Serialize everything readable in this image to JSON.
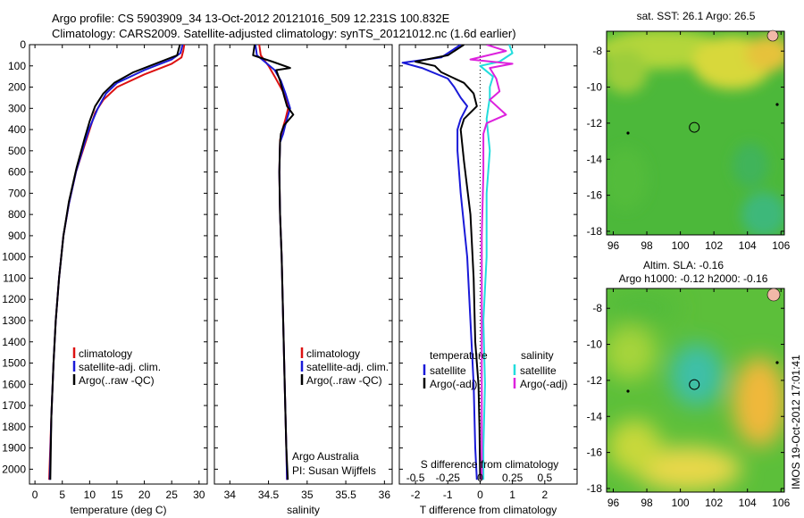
{
  "header": {
    "title_line1": "Argo profile: CS 5903909_34 13-Oct-2012 20121016_509 12.231S 100.832E",
    "title_line2": "Climatology: CARS2009. Satellite-adjusted climatology: synTS_20121012.nc (1.6d earlier)"
  },
  "colors": {
    "climatology": "#dd1111",
    "satellite": "#1a1ad8",
    "argo": "#000000",
    "sal_satellite": "#22dddd",
    "sal_argo": "#dd22dd"
  },
  "depth_axis": {
    "ticks": [
      0,
      100,
      200,
      300,
      400,
      500,
      600,
      700,
      800,
      900,
      1000,
      1100,
      1200,
      1300,
      1400,
      1500,
      1600,
      1700,
      1800,
      1900,
      2000
    ],
    "range": [
      0,
      2070
    ]
  },
  "chart_data": [
    {
      "type": "line",
      "name": "temperature-profile",
      "xlabel": "temperature (deg C)",
      "xlim": [
        -1,
        31.5
      ],
      "xticks": [
        0,
        5,
        10,
        15,
        20,
        25,
        30
      ],
      "legend": [
        "climatology",
        "satellite-adj. clim.",
        "Argo(..raw -QC)"
      ],
      "series": [
        {
          "name": "climatology",
          "color_key": "climatology",
          "points": [
            [
              27.3,
              0
            ],
            [
              27.1,
              30
            ],
            [
              26.8,
              60
            ],
            [
              25.0,
              90
            ],
            [
              20.0,
              140
            ],
            [
              15.0,
              200
            ],
            [
              12.5,
              260
            ],
            [
              11.0,
              320
            ],
            [
              10.0,
              400
            ],
            [
              9.0,
              480
            ],
            [
              7.5,
              600
            ],
            [
              6.2,
              750
            ],
            [
              5.2,
              900
            ],
            [
              4.4,
              1100
            ],
            [
              3.8,
              1300
            ],
            [
              3.4,
              1500
            ],
            [
              3.0,
              1750
            ],
            [
              2.6,
              2050
            ]
          ]
        },
        {
          "name": "satellite-adj. clim.",
          "color_key": "satellite",
          "points": [
            [
              27.0,
              0
            ],
            [
              26.6,
              40
            ],
            [
              25.0,
              70
            ],
            [
              20.0,
              120
            ],
            [
              15.0,
              180
            ],
            [
              13.0,
              230
            ],
            [
              11.5,
              300
            ],
            [
              10.0,
              390
            ],
            [
              9.0,
              470
            ],
            [
              7.5,
              600
            ],
            [
              6.2,
              750
            ],
            [
              5.2,
              900
            ],
            [
              4.4,
              1100
            ],
            [
              3.8,
              1300
            ],
            [
              3.4,
              1500
            ],
            [
              3.0,
              1750
            ],
            [
              2.7,
              2050
            ]
          ]
        },
        {
          "name": "Argo(..raw -QC)",
          "color_key": "argo",
          "points": [
            [
              26.5,
              0
            ],
            [
              26.0,
              50
            ],
            [
              22.0,
              90
            ],
            [
              18.0,
              130
            ],
            [
              14.5,
              180
            ],
            [
              12.5,
              230
            ],
            [
              11.0,
              290
            ],
            [
              10.0,
              360
            ],
            [
              9.1,
              440
            ],
            [
              7.6,
              580
            ],
            [
              6.2,
              740
            ],
            [
              5.2,
              900
            ],
            [
              4.4,
              1100
            ],
            [
              3.8,
              1300
            ],
            [
              3.4,
              1500
            ],
            [
              3.0,
              1750
            ],
            [
              2.8,
              2050
            ]
          ]
        }
      ]
    },
    {
      "type": "line",
      "name": "salinity-profile",
      "xlabel": "salinity",
      "xlim": [
        33.8,
        36.1
      ],
      "xticks": [
        34,
        34.5,
        35,
        35.5,
        36
      ],
      "legend": [
        "climatology",
        "satellite-adj. clim.",
        "Argo(..raw -QC)"
      ],
      "credits": [
        "Argo Australia",
        "PI: Susan Wijffels"
      ],
      "series": [
        {
          "name": "climatology",
          "color_key": "climatology",
          "points": [
            [
              34.38,
              0
            ],
            [
              34.4,
              50
            ],
            [
              34.5,
              100
            ],
            [
              34.58,
              150
            ],
            [
              34.7,
              230
            ],
            [
              34.76,
              290
            ],
            [
              34.72,
              350
            ],
            [
              34.68,
              400
            ],
            [
              34.65,
              450
            ],
            [
              34.64,
              600
            ],
            [
              34.65,
              800
            ],
            [
              34.67,
              1000
            ],
            [
              34.69,
              1300
            ],
            [
              34.71,
              1600
            ],
            [
              34.73,
              1900
            ],
            [
              34.74,
              2050
            ]
          ]
        },
        {
          "name": "satellite-adj. clim.",
          "color_key": "satellite",
          "points": [
            [
              34.33,
              0
            ],
            [
              34.35,
              50
            ],
            [
              34.45,
              80
            ],
            [
              34.58,
              120
            ],
            [
              34.66,
              170
            ],
            [
              34.72,
              230
            ],
            [
              34.78,
              300
            ],
            [
              34.73,
              360
            ],
            [
              34.69,
              420
            ],
            [
              34.65,
              460
            ],
            [
              34.64,
              600
            ],
            [
              34.65,
              800
            ],
            [
              34.67,
              1000
            ],
            [
              34.69,
              1300
            ],
            [
              34.71,
              1600
            ],
            [
              34.73,
              1900
            ],
            [
              34.74,
              2050
            ]
          ]
        },
        {
          "name": "Argo(..raw -QC)",
          "color_key": "argo",
          "points": [
            [
              34.32,
              0
            ],
            [
              34.3,
              50
            ],
            [
              34.55,
              80
            ],
            [
              34.78,
              110
            ],
            [
              34.6,
              120
            ],
            [
              34.65,
              170
            ],
            [
              34.7,
              240
            ],
            [
              34.74,
              290
            ],
            [
              34.82,
              330
            ],
            [
              34.7,
              380
            ],
            [
              34.66,
              420
            ],
            [
              34.65,
              460
            ],
            [
              34.64,
              600
            ],
            [
              34.65,
              800
            ],
            [
              34.67,
              1000
            ],
            [
              34.69,
              1300
            ],
            [
              34.71,
              1600
            ],
            [
              34.73,
              1900
            ],
            [
              34.75,
              2050
            ]
          ]
        }
      ]
    },
    {
      "type": "line",
      "name": "difference-profile",
      "xlabel": "T difference from climatology",
      "top_axis_label": "S difference from climatology",
      "xlim": [
        -2.5,
        3.0
      ],
      "xticks": [
        -2,
        -1,
        0,
        1,
        2
      ],
      "s_xticks": [
        "-0.5",
        "-0.25",
        "0",
        "0.25",
        "0.5"
      ],
      "s_tick_positions_T": [
        -2,
        -1,
        0,
        1,
        2
      ],
      "legend_temperature": {
        "heading": "temperature",
        "items": [
          "satellite",
          "Argo(-adj)"
        ]
      },
      "legend_salinity": {
        "heading": "salinity",
        "items": [
          "satellite",
          "Argo(-adj)"
        ]
      },
      "series": [
        {
          "name": "T satellite",
          "color_key": "satellite",
          "points": [
            [
              -0.6,
              0
            ],
            [
              -1.2,
              60
            ],
            [
              -2.4,
              85
            ],
            [
              -1.8,
              110
            ],
            [
              -1.0,
              160
            ],
            [
              -0.8,
              200
            ],
            [
              -0.6,
              250
            ],
            [
              -0.4,
              290
            ],
            [
              -0.6,
              350
            ],
            [
              -0.7,
              400
            ],
            [
              -0.7,
              500
            ],
            [
              -0.6,
              700
            ],
            [
              -0.4,
              1000
            ],
            [
              -0.3,
              1300
            ],
            [
              -0.2,
              1600
            ],
            [
              -0.15,
              1900
            ],
            [
              -0.1,
              2050
            ]
          ]
        },
        {
          "name": "T Argo(-adj)",
          "color_key": "argo",
          "points": [
            [
              -0.5,
              0
            ],
            [
              -1.0,
              50
            ],
            [
              -2.0,
              80
            ],
            [
              -1.4,
              100
            ],
            [
              -1.2,
              130
            ],
            [
              -0.5,
              180
            ],
            [
              -0.2,
              230
            ],
            [
              -0.1,
              290
            ],
            [
              -0.5,
              350
            ],
            [
              -0.6,
              400
            ],
            [
              -0.5,
              550
            ],
            [
              -0.3,
              800
            ],
            [
              -0.2,
              1100
            ],
            [
              -0.15,
              1400
            ],
            [
              -0.05,
              1600
            ],
            [
              -0.02,
              1800
            ],
            [
              0.0,
              2050
            ]
          ]
        },
        {
          "name": "S satellite",
          "color_key": "sal_satellite",
          "points": [
            [
              0.9,
              0
            ],
            [
              1.0,
              40
            ],
            [
              0.6,
              80
            ],
            [
              0.0,
              100
            ],
            [
              0.4,
              150
            ],
            [
              0.3,
              200
            ],
            [
              0.3,
              250
            ],
            [
              0.2,
              350
            ],
            [
              0.3,
              500
            ],
            [
              0.2,
              700
            ],
            [
              0.2,
              1000
            ],
            [
              0.1,
              1300
            ],
            [
              0.15,
              1600
            ],
            [
              0.1,
              1900
            ],
            [
              0.1,
              2050
            ]
          ]
        },
        {
          "name": "S Argo(-adj)",
          "color_key": "sal_argo",
          "points": [
            [
              0.2,
              0
            ],
            [
              0.8,
              30
            ],
            [
              -0.3,
              70
            ],
            [
              1.0,
              90
            ],
            [
              0.3,
              110
            ],
            [
              0.5,
              160
            ],
            [
              0.6,
              220
            ],
            [
              0.3,
              260
            ],
            [
              0.8,
              330
            ],
            [
              0.2,
              370
            ],
            [
              0.1,
              420
            ],
            [
              0.1,
              600
            ],
            [
              0.05,
              900
            ],
            [
              0.05,
              1200
            ],
            [
              0.05,
              1600
            ],
            [
              0.05,
              2050
            ]
          ]
        }
      ]
    },
    {
      "type": "heatmap",
      "name": "sst-map",
      "title": "sat. SST: 26.1  Argo: 26.5",
      "xlim": [
        95.6,
        106.2
      ],
      "ylim": [
        -18.2,
        -6.9
      ],
      "xticks": [
        96,
        98,
        100,
        102,
        104,
        106
      ],
      "yticks": [
        -8,
        -10,
        -12,
        -14,
        -16,
        -18
      ],
      "marker": {
        "lon": 100.832,
        "lat": -12.231
      }
    },
    {
      "type": "heatmap",
      "name": "sla-map",
      "title_line1": "Altim. SLA: -0.16",
      "title_line2": "Argo h1000: -0.12  h2000: -0.16",
      "xlim": [
        95.6,
        106.2
      ],
      "ylim": [
        -18.2,
        -6.9
      ],
      "xticks": [
        96,
        98,
        100,
        102,
        104,
        106
      ],
      "yticks": [
        -8,
        -10,
        -12,
        -14,
        -16,
        -18
      ],
      "marker": {
        "lon": 100.832,
        "lat": -12.231
      }
    }
  ],
  "footer": {
    "stamp": "IMOS 19-Oct-2012 17:01:41"
  }
}
